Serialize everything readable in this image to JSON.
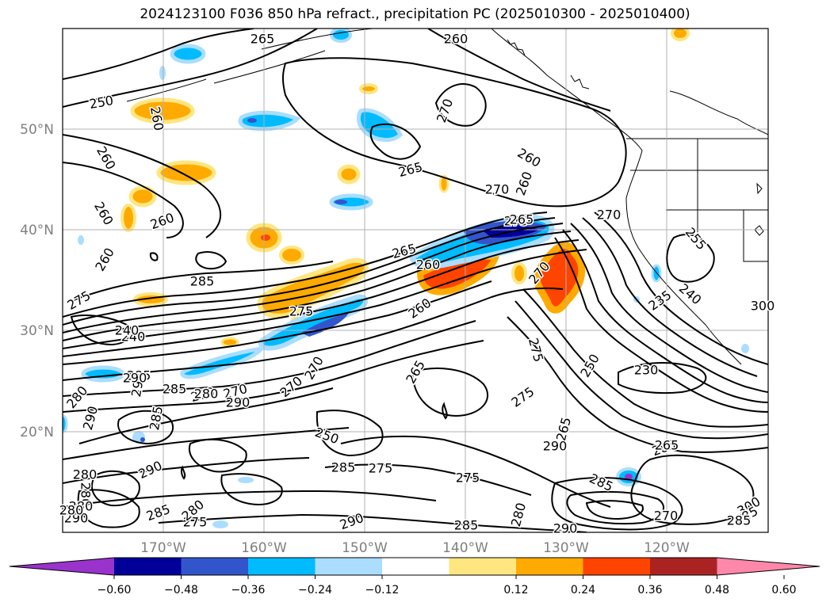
{
  "title": "2024123100 F036 850 hPa refract., precipitation PC (2025010300 - 2025010400)",
  "map": {
    "lat_labels": [
      "50°N",
      "40°N",
      "30°N",
      "20°N"
    ],
    "lon_labels": [
      "170°W",
      "160°W",
      "150°W",
      "140°W",
      "130°W",
      "120°W"
    ],
    "grid_color": "#b0b0b0",
    "contour_color": "#000000",
    "contour_labels": [
      "265",
      "260",
      "250",
      "260",
      "260",
      "270",
      "265",
      "260",
      "270",
      "260",
      "240",
      "260",
      "260",
      "270",
      "255",
      "265",
      "275",
      "265",
      "270",
      "275",
      "260",
      "285",
      "235",
      "240",
      "275",
      "260",
      "250",
      "230",
      "240",
      "260",
      "265",
      "270",
      "290",
      "285",
      "270",
      "250",
      "270",
      "285",
      "290",
      "280",
      "275",
      "275",
      "265",
      "285",
      "290",
      "285",
      "275",
      "285",
      "290",
      "280",
      "290",
      "285",
      "280",
      "300",
      "270",
      "285",
      "290",
      "280",
      "285",
      "275",
      "285",
      "280",
      "290",
      "265",
      "285",
      "280",
      "290",
      "270",
      "290",
      "280",
      "275",
      "300",
      "280"
    ]
  },
  "colorbar": {
    "ticks": [
      "−0.60",
      "−0.48",
      "−0.36",
      "−0.24",
      "−0.12",
      "0.12",
      "0.24",
      "0.36",
      "0.48",
      "0.60"
    ],
    "colors": [
      "#9933cc",
      "#000099",
      "#3355cc",
      "#00bbff",
      "#aaddff",
      "#ffffff",
      "#ffe680",
      "#ffaa00",
      "#ff4400",
      "#aa2222",
      "#ff88aa"
    ]
  }
}
